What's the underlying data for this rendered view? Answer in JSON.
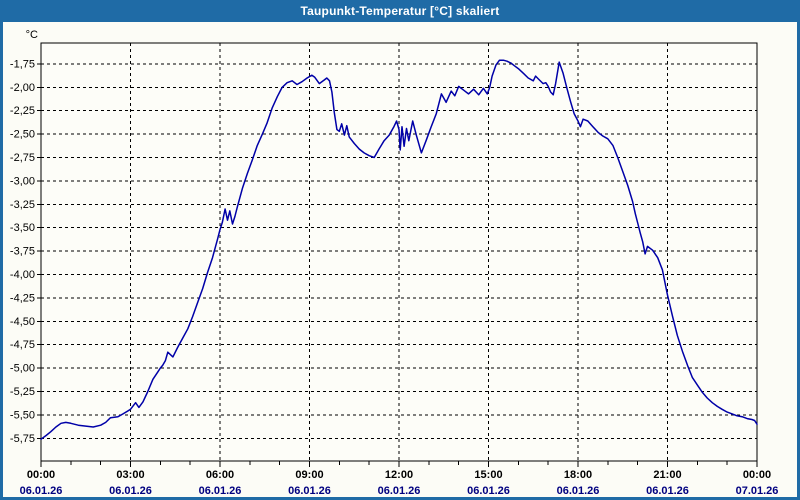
{
  "window": {
    "title": "Taupunkt-Temperatur [°C] skaliert"
  },
  "colors": {
    "titlebar_bg": "#1F6BA6",
    "titlebar_text": "#FFFFFF",
    "frame": "#1F6BA6",
    "canvas_bg": "#FCFCF6",
    "plot_bg": "#FDFDF8",
    "grid": "#000000",
    "axis": "#000000",
    "series": "#0000A8",
    "time_label": "#000000",
    "date_label": "#000080"
  },
  "chart_data": {
    "type": "line",
    "title": "Taupunkt-Temperatur [°C] skaliert",
    "ylabel": "°C",
    "xlabel": "",
    "grid": "dashed",
    "legend": "none",
    "ylim": [
      -5.993,
      -1.526
    ],
    "xlim_hours": [
      0,
      24
    ],
    "y_ticks": [
      {
        "v": -1.75,
        "label": "-1,75"
      },
      {
        "v": -2.0,
        "label": "-2,00"
      },
      {
        "v": -2.25,
        "label": "-2,25"
      },
      {
        "v": -2.5,
        "label": "-2,50"
      },
      {
        "v": -2.75,
        "label": "-2,75"
      },
      {
        "v": -3.0,
        "label": "-3,00"
      },
      {
        "v": -3.25,
        "label": "-3,25"
      },
      {
        "v": -3.5,
        "label": "-3,50"
      },
      {
        "v": -3.75,
        "label": "-3,75"
      },
      {
        "v": -4.0,
        "label": "-4,00"
      },
      {
        "v": -4.25,
        "label": "-4,25"
      },
      {
        "v": -4.5,
        "label": "-4,50"
      },
      {
        "v": -4.75,
        "label": "-4,75"
      },
      {
        "v": -5.0,
        "label": "-5,00"
      },
      {
        "v": -5.25,
        "label": "-5,25"
      },
      {
        "v": -5.5,
        "label": "-5,50"
      },
      {
        "v": -5.75,
        "label": "-5,75"
      }
    ],
    "x_major_ticks": [
      {
        "hour": 0,
        "time": "00:00",
        "date": "06.01.26"
      },
      {
        "hour": 3,
        "time": "03:00",
        "date": "06.01.26"
      },
      {
        "hour": 6,
        "time": "06:00",
        "date": "06.01.26"
      },
      {
        "hour": 9,
        "time": "09:00",
        "date": "06.01.26"
      },
      {
        "hour": 12,
        "time": "12:00",
        "date": "06.01.26"
      },
      {
        "hour": 15,
        "time": "15:00",
        "date": "06.01.26"
      },
      {
        "hour": 18,
        "time": "18:00",
        "date": "06.01.26"
      },
      {
        "hour": 21,
        "time": "21:00",
        "date": "06.01.26"
      },
      {
        "hour": 24,
        "time": "00:00",
        "date": "07.01.26"
      }
    ],
    "x_minor_step_hours": 1,
    "series": [
      {
        "name": "Taupunkt-Temperatur",
        "color": "#0000A8",
        "points": [
          [
            0.0,
            -5.76
          ],
          [
            0.17,
            -5.72
          ],
          [
            0.33,
            -5.68
          ],
          [
            0.5,
            -5.63
          ],
          [
            0.67,
            -5.59
          ],
          [
            0.83,
            -5.58
          ],
          [
            1.0,
            -5.59
          ],
          [
            1.25,
            -5.61
          ],
          [
            1.5,
            -5.62
          ],
          [
            1.75,
            -5.63
          ],
          [
            2.0,
            -5.61
          ],
          [
            2.17,
            -5.58
          ],
          [
            2.33,
            -5.53
          ],
          [
            2.58,
            -5.52
          ],
          [
            2.75,
            -5.49
          ],
          [
            3.0,
            -5.44
          ],
          [
            3.17,
            -5.37
          ],
          [
            3.28,
            -5.42
          ],
          [
            3.42,
            -5.36
          ],
          [
            3.58,
            -5.25
          ],
          [
            3.75,
            -5.12
          ],
          [
            3.92,
            -5.04
          ],
          [
            4.0,
            -5.0
          ],
          [
            4.08,
            -4.97
          ],
          [
            4.17,
            -4.92
          ],
          [
            4.25,
            -4.83
          ],
          [
            4.42,
            -4.88
          ],
          [
            4.58,
            -4.78
          ],
          [
            4.75,
            -4.68
          ],
          [
            4.92,
            -4.58
          ],
          [
            5.08,
            -4.45
          ],
          [
            5.25,
            -4.3
          ],
          [
            5.42,
            -4.15
          ],
          [
            5.58,
            -3.98
          ],
          [
            5.75,
            -3.82
          ],
          [
            5.92,
            -3.62
          ],
          [
            6.0,
            -3.52
          ],
          [
            6.08,
            -3.44
          ],
          [
            6.17,
            -3.3
          ],
          [
            6.25,
            -3.42
          ],
          [
            6.33,
            -3.32
          ],
          [
            6.42,
            -3.46
          ],
          [
            6.5,
            -3.38
          ],
          [
            6.58,
            -3.28
          ],
          [
            6.75,
            -3.08
          ],
          [
            6.92,
            -2.92
          ],
          [
            7.08,
            -2.78
          ],
          [
            7.25,
            -2.62
          ],
          [
            7.42,
            -2.5
          ],
          [
            7.58,
            -2.38
          ],
          [
            7.75,
            -2.22
          ],
          [
            7.92,
            -2.1
          ],
          [
            8.08,
            -2.0
          ],
          [
            8.25,
            -1.95
          ],
          [
            8.42,
            -1.93
          ],
          [
            8.58,
            -1.97
          ],
          [
            8.75,
            -1.94
          ],
          [
            8.92,
            -1.9
          ],
          [
            9.08,
            -1.87
          ],
          [
            9.17,
            -1.89
          ],
          [
            9.33,
            -1.96
          ],
          [
            9.5,
            -1.92
          ],
          [
            9.58,
            -1.9
          ],
          [
            9.67,
            -1.93
          ],
          [
            9.75,
            -2.05
          ],
          [
            9.83,
            -2.27
          ],
          [
            9.92,
            -2.45
          ],
          [
            10.0,
            -2.47
          ],
          [
            10.08,
            -2.39
          ],
          [
            10.17,
            -2.51
          ],
          [
            10.25,
            -2.41
          ],
          [
            10.33,
            -2.53
          ],
          [
            10.5,
            -2.6
          ],
          [
            10.67,
            -2.66
          ],
          [
            10.83,
            -2.7
          ],
          [
            11.0,
            -2.73
          ],
          [
            11.17,
            -2.75
          ],
          [
            11.33,
            -2.66
          ],
          [
            11.5,
            -2.57
          ],
          [
            11.67,
            -2.51
          ],
          [
            11.83,
            -2.42
          ],
          [
            11.92,
            -2.36
          ],
          [
            12.0,
            -2.45
          ],
          [
            12.04,
            -2.67
          ],
          [
            12.1,
            -2.42
          ],
          [
            12.17,
            -2.63
          ],
          [
            12.25,
            -2.44
          ],
          [
            12.33,
            -2.57
          ],
          [
            12.46,
            -2.36
          ],
          [
            12.58,
            -2.51
          ],
          [
            12.75,
            -2.7
          ],
          [
            12.92,
            -2.56
          ],
          [
            13.08,
            -2.42
          ],
          [
            13.25,
            -2.28
          ],
          [
            13.42,
            -2.07
          ],
          [
            13.58,
            -2.16
          ],
          [
            13.75,
            -2.04
          ],
          [
            13.87,
            -2.09
          ],
          [
            14.0,
            -1.99
          ],
          [
            14.17,
            -2.03
          ],
          [
            14.33,
            -2.07
          ],
          [
            14.5,
            -2.02
          ],
          [
            14.67,
            -2.08
          ],
          [
            14.83,
            -2.01
          ],
          [
            14.96,
            -2.07
          ],
          [
            15.04,
            -2.0
          ],
          [
            15.12,
            -1.88
          ],
          [
            15.25,
            -1.76
          ],
          [
            15.37,
            -1.71
          ],
          [
            15.5,
            -1.71
          ],
          [
            15.62,
            -1.72
          ],
          [
            15.75,
            -1.74
          ],
          [
            15.87,
            -1.77
          ],
          [
            16.0,
            -1.8
          ],
          [
            16.17,
            -1.85
          ],
          [
            16.33,
            -1.9
          ],
          [
            16.5,
            -1.93
          ],
          [
            16.58,
            -1.88
          ],
          [
            16.67,
            -1.91
          ],
          [
            16.83,
            -1.96
          ],
          [
            16.92,
            -1.95
          ],
          [
            17.0,
            -1.99
          ],
          [
            17.08,
            -2.05
          ],
          [
            17.17,
            -2.08
          ],
          [
            17.25,
            -1.96
          ],
          [
            17.37,
            -1.73
          ],
          [
            17.5,
            -1.85
          ],
          [
            17.62,
            -2.0
          ],
          [
            17.75,
            -2.15
          ],
          [
            17.87,
            -2.28
          ],
          [
            18.0,
            -2.36
          ],
          [
            18.08,
            -2.42
          ],
          [
            18.17,
            -2.34
          ],
          [
            18.33,
            -2.36
          ],
          [
            18.5,
            -2.42
          ],
          [
            18.67,
            -2.48
          ],
          [
            18.83,
            -2.52
          ],
          [
            19.0,
            -2.55
          ],
          [
            19.17,
            -2.62
          ],
          [
            19.33,
            -2.75
          ],
          [
            19.5,
            -2.9
          ],
          [
            19.67,
            -3.05
          ],
          [
            19.83,
            -3.22
          ],
          [
            19.92,
            -3.35
          ],
          [
            20.0,
            -3.45
          ],
          [
            20.08,
            -3.55
          ],
          [
            20.17,
            -3.65
          ],
          [
            20.25,
            -3.78
          ],
          [
            20.33,
            -3.7
          ],
          [
            20.5,
            -3.74
          ],
          [
            20.67,
            -3.82
          ],
          [
            20.83,
            -3.95
          ],
          [
            21.0,
            -4.22
          ],
          [
            21.17,
            -4.45
          ],
          [
            21.33,
            -4.65
          ],
          [
            21.5,
            -4.82
          ],
          [
            21.67,
            -4.97
          ],
          [
            21.83,
            -5.1
          ],
          [
            22.0,
            -5.18
          ],
          [
            22.17,
            -5.26
          ],
          [
            22.33,
            -5.32
          ],
          [
            22.5,
            -5.37
          ],
          [
            22.67,
            -5.41
          ],
          [
            22.83,
            -5.44
          ],
          [
            23.0,
            -5.47
          ],
          [
            23.17,
            -5.49
          ],
          [
            23.33,
            -5.51
          ],
          [
            23.5,
            -5.52
          ],
          [
            23.67,
            -5.54
          ],
          [
            23.83,
            -5.55
          ],
          [
            23.92,
            -5.56
          ],
          [
            24.0,
            -5.6
          ]
        ]
      }
    ]
  }
}
